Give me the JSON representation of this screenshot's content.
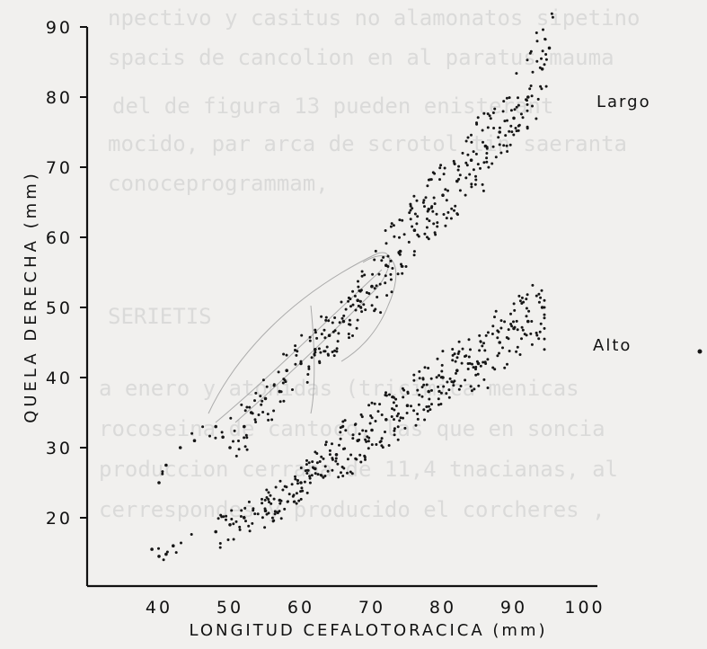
{
  "chart_data": {
    "type": "scatter",
    "xlabel": "LONGITUD CEFALOTORACICA (mm)",
    "ylabel": "QUELA DERECHA (mm)",
    "xlim": [
      33,
      108
    ],
    "ylim": [
      12,
      93
    ],
    "x_ticks": [
      40,
      50,
      60,
      70,
      80,
      90,
      100
    ],
    "y_ticks": [
      20,
      30,
      40,
      50,
      60,
      70,
      80,
      90
    ],
    "grid": false,
    "legend": "none",
    "series": [
      {
        "name": "Largo",
        "relation": "y ≈ 0.93·x − 9 (approx. fit to point cloud)",
        "x_range": [
          40,
          95
        ],
        "points": [
          [
            40,
            25
          ],
          [
            41,
            27.5
          ],
          [
            43,
            30
          ],
          [
            45,
            31
          ],
          [
            48,
            33
          ],
          [
            49,
            31.5
          ],
          [
            50,
            30
          ],
          [
            52,
            33
          ],
          [
            53,
            35
          ],
          [
            55,
            37
          ],
          [
            57,
            38
          ],
          [
            58,
            41
          ],
          [
            60,
            42
          ],
          [
            62,
            44
          ],
          [
            64,
            46
          ],
          [
            66,
            48
          ],
          [
            68,
            51
          ],
          [
            70,
            53
          ],
          [
            72,
            56
          ],
          [
            74,
            58
          ],
          [
            76,
            61
          ],
          [
            78,
            64
          ],
          [
            80,
            66
          ],
          [
            82,
            68
          ],
          [
            84,
            71
          ],
          [
            86,
            73
          ],
          [
            88,
            75
          ],
          [
            90,
            77
          ],
          [
            92,
            80
          ],
          [
            94,
            84
          ],
          [
            95,
            87
          ]
        ]
      },
      {
        "name": "Alto",
        "relation": "y ≈ 0.62·x − 7 (approx. fit to point cloud)",
        "x_range": [
          39,
          95
        ],
        "points": [
          [
            39,
            15.5
          ],
          [
            40,
            14.5
          ],
          [
            41,
            14.8
          ],
          [
            42,
            16
          ],
          [
            48,
            18
          ],
          [
            50,
            19
          ],
          [
            52,
            20
          ],
          [
            55,
            21
          ],
          [
            57,
            22.5
          ],
          [
            60,
            25
          ],
          [
            62,
            27
          ],
          [
            65,
            29
          ],
          [
            68,
            31
          ],
          [
            70,
            32.5
          ],
          [
            72,
            34
          ],
          [
            75,
            36
          ],
          [
            78,
            38
          ],
          [
            80,
            40
          ],
          [
            82,
            41
          ],
          [
            85,
            42
          ],
          [
            88,
            45
          ],
          [
            90,
            47
          ],
          [
            92,
            48
          ],
          [
            94,
            50
          ]
        ]
      }
    ]
  }
}
